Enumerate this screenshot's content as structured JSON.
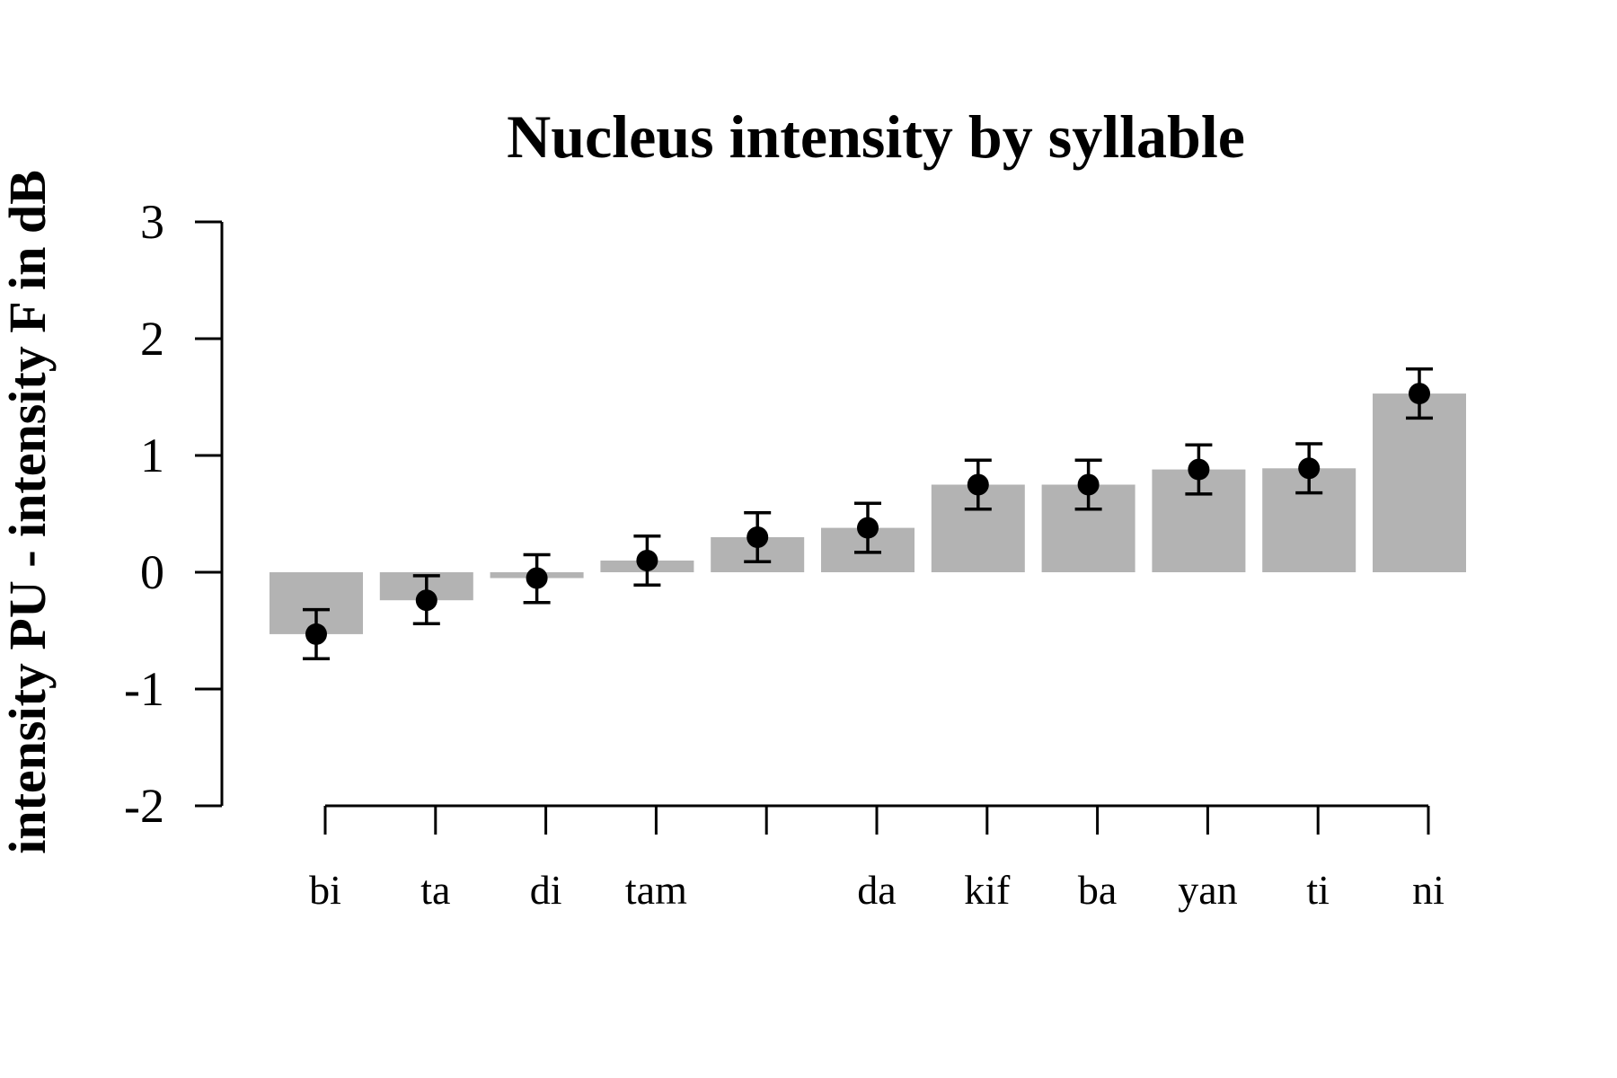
{
  "chart_data": {
    "type": "bar",
    "title": "Nucleus intensity by syllable",
    "xlabel": "",
    "ylabel": "intensity PU - intensity F in dB",
    "ylim": [
      -2,
      3
    ],
    "yticks": [
      -2,
      -1,
      0,
      1,
      2,
      3
    ],
    "categories": [
      "bi",
      "ta",
      "di",
      "tam",
      "",
      "da",
      "kif",
      "ba",
      "yan",
      "ti",
      "ni"
    ],
    "values": [
      -0.53,
      -0.24,
      -0.05,
      0.1,
      0.3,
      0.38,
      0.75,
      0.75,
      0.88,
      0.89,
      1.53
    ],
    "error_low": [
      -0.74,
      -0.44,
      -0.26,
      -0.11,
      0.09,
      0.17,
      0.54,
      0.54,
      0.67,
      0.68,
      1.32
    ],
    "error_high": [
      -0.32,
      -0.03,
      0.15,
      0.31,
      0.51,
      0.59,
      0.96,
      0.96,
      1.09,
      1.1,
      1.74
    ],
    "bar_color": "#b3b3b3",
    "point_color": "#000000",
    "grid": false,
    "legend": "none"
  }
}
